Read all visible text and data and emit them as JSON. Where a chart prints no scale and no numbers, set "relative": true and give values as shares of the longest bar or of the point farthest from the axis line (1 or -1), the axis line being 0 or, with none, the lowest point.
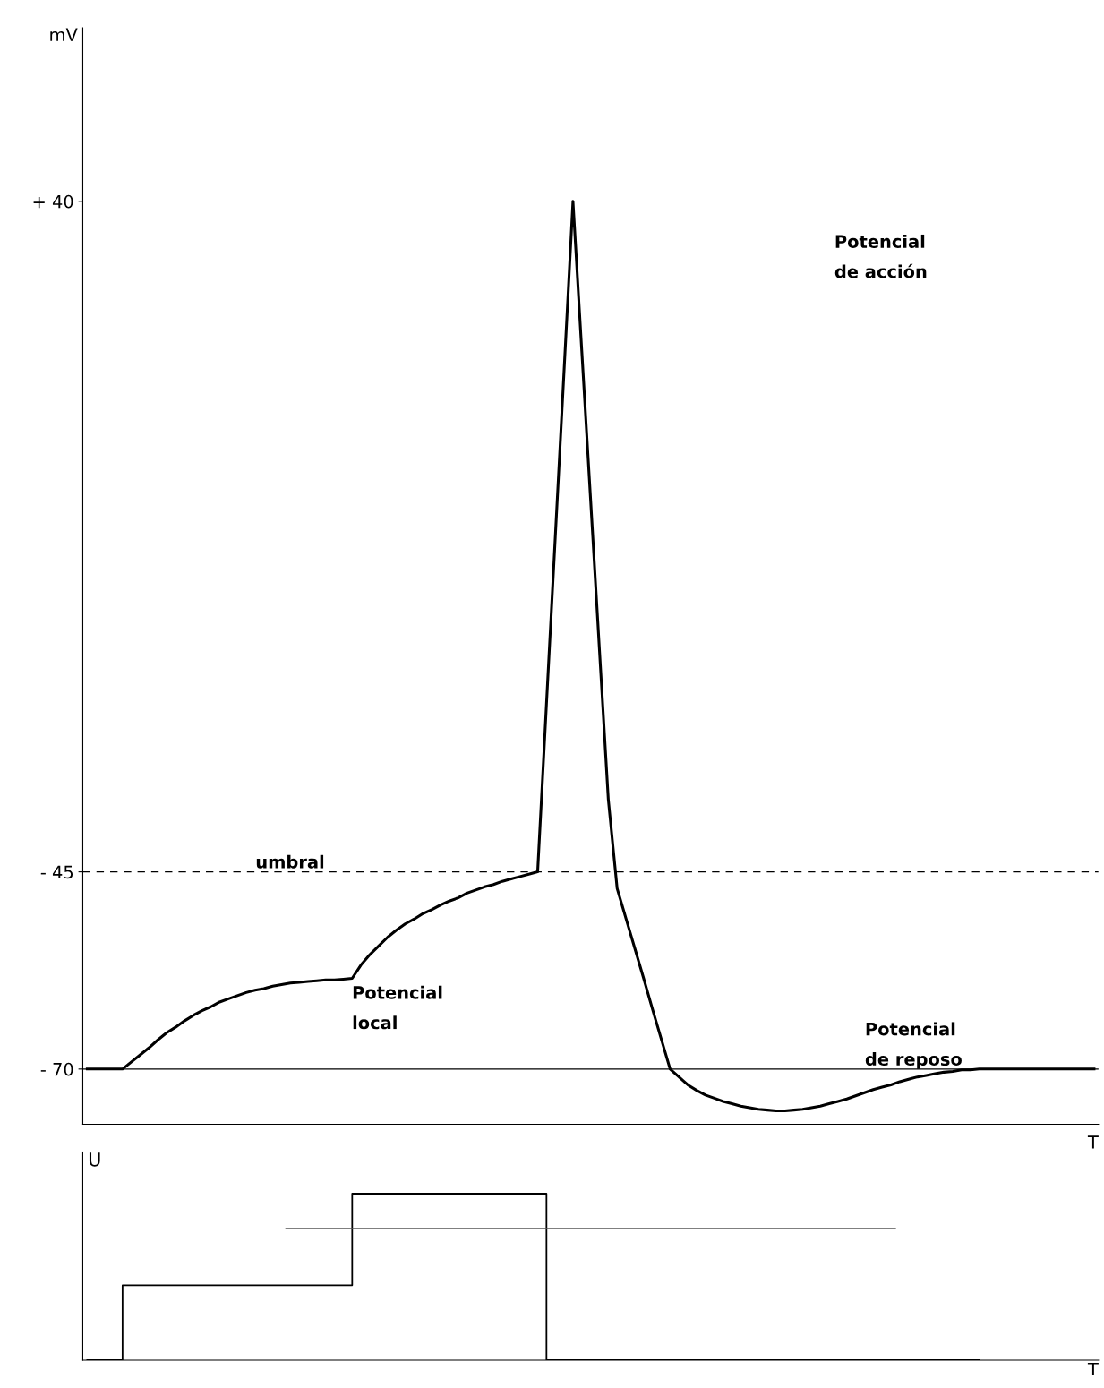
{
  "chart_data": [
    {
      "type": "line",
      "ylabel": "mV",
      "xlabel": "T",
      "categories": [
        null,
        null,
        null,
        null,
        null,
        null,
        null,
        null,
        null,
        null,
        null,
        null,
        null,
        null,
        null,
        null,
        null,
        null,
        null,
        null,
        null,
        null,
        null,
        null,
        null,
        null,
        null,
        null,
        null,
        null,
        null,
        null,
        null,
        null,
        null,
        null,
        null,
        null,
        null,
        null,
        null,
        null,
        null,
        null,
        null,
        null,
        null,
        null,
        null,
        null,
        null,
        null,
        null,
        null,
        null,
        null,
        null,
        null,
        null,
        null,
        null,
        null,
        null,
        null,
        null,
        null,
        null,
        null,
        null,
        null,
        null,
        null,
        null,
        null,
        null,
        null,
        null,
        null,
        null,
        null,
        null,
        null,
        null,
        null,
        null,
        null,
        null,
        null,
        null,
        null,
        null,
        null,
        null,
        null,
        null,
        null,
        null,
        null,
        null,
        null,
        null,
        null,
        null,
        null,
        null,
        null,
        null,
        null,
        null,
        null,
        null,
        null,
        null,
        null,
        null
      ],
      "series": [
        {
          "color": "#000000",
          "values": [
            -70,
            -70,
            -70,
            -70,
            -70,
            -69.1,
            -68.2,
            -67.3,
            -66.3,
            -65.4,
            -64.7,
            -63.9,
            -63.2,
            -62.6,
            -62.1,
            -61.5,
            -61.1,
            -60.7,
            -60.3,
            -60.0,
            -59.8,
            -59.5,
            -59.3,
            -59.1,
            -59.0,
            -58.9,
            -58.8,
            -58.7,
            -58.7,
            -58.6,
            -58.5,
            -56.8,
            -55.5,
            -54.4,
            -53.3,
            -52.4,
            -51.6,
            -51.0,
            -50.3,
            -49.8,
            -49.2,
            -48.7,
            -48.3,
            -47.7,
            -47.3,
            -46.9,
            -46.6,
            -46.2,
            -45.9,
            -45.6,
            -45.3,
            -45,
            -23.7,
            -2.5,
            18.7,
            40,
            21.0,
            2.1,
            -16.9,
            -35.8,
            -47.1,
            -50.9,
            -54.7,
            -58.5,
            -62.4,
            -66.2,
            -70,
            -71.0,
            -72.0,
            -72.7,
            -73.3,
            -73.7,
            -74.1,
            -74.4,
            -74.7,
            -74.9,
            -75.1,
            -75.2,
            -75.3,
            -75.3,
            -75.2,
            -75.1,
            -74.9,
            -74.7,
            -74.4,
            -74.1,
            -73.8,
            -73.4,
            -73.0,
            -72.6,
            -72.3,
            -72.0,
            -71.6,
            -71.3,
            -71.0,
            -70.8,
            -70.6,
            -70.4,
            -70.3,
            -70.1,
            -70.1,
            -70,
            -70,
            -70,
            -70,
            -70,
            -70,
            -70,
            -70,
            -70,
            -70,
            -70,
            -70,
            -70,
            -70
          ]
        }
      ],
      "ylim": [
        -77,
        62
      ],
      "yticks": [
        {
          "value": -70,
          "label": "- 70"
        },
        {
          "value": -45,
          "label": "- 45"
        },
        {
          "value": 40,
          "label": "+ 40"
        }
      ],
      "ref_lines": [
        {
          "axis": "y",
          "value": -45,
          "label": "umbral",
          "line_style": "dashed",
          "color": "#000000"
        },
        {
          "axis": "y",
          "value": -70,
          "label": "Potencial\nde reposo",
          "line_style": "solid",
          "color": "#000000"
        }
      ],
      "annotations": [
        "Potencial\nde acción",
        "Potencial\nlocal"
      ],
      "grid": false,
      "legend": false,
      "tick_labels": "y"
    },
    {
      "type": "step",
      "ylabel": "U",
      "xlabel": "T",
      "relative": true,
      "categories": [
        null,
        null,
        null,
        null,
        null,
        null,
        null,
        null,
        null,
        null,
        null,
        null,
        null,
        null,
        null,
        null,
        null,
        null,
        null,
        null,
        null,
        null,
        null,
        null,
        null,
        null,
        null,
        null,
        null,
        null,
        null,
        null,
        null,
        null,
        null,
        null,
        null,
        null,
        null,
        null,
        null,
        null,
        null,
        null,
        null,
        null,
        null,
        null,
        null,
        null,
        null,
        null,
        null,
        null,
        null,
        null,
        null,
        null,
        null,
        null,
        null,
        null,
        null,
        null,
        null,
        null,
        null,
        null,
        null,
        null,
        null,
        null,
        null,
        null,
        null,
        null,
        null,
        null,
        null,
        null,
        null,
        null,
        null,
        null,
        null,
        null,
        null,
        null,
        null,
        null,
        null,
        null,
        null,
        null,
        null,
        null,
        null,
        null,
        null,
        null,
        null,
        null
      ],
      "series": [
        {
          "color": "#000000",
          "values": [
            0,
            0,
            0,
            0,
            0.45,
            0.45,
            0.45,
            0.45,
            0.45,
            0.45,
            0.45,
            0.45,
            0.45,
            0.45,
            0.45,
            0.45,
            0.45,
            0.45,
            0.45,
            0.45,
            0.45,
            0.45,
            0.45,
            0.45,
            0.45,
            0.45,
            0.45,
            0.45,
            0.45,
            0.45,
            1,
            1,
            1,
            1,
            1,
            1,
            1,
            1,
            1,
            1,
            1,
            1,
            1,
            1,
            1,
            1,
            1,
            1,
            1,
            1,
            1,
            1,
            0,
            0,
            0,
            0,
            0,
            0,
            0,
            0,
            0,
            0,
            0,
            0,
            0,
            0,
            0,
            0,
            0,
            0,
            0,
            0,
            0,
            0,
            0,
            0,
            0,
            0,
            0,
            0,
            0,
            0,
            0,
            0,
            0,
            0,
            0,
            0,
            0,
            0,
            0,
            0,
            0,
            0,
            0,
            0,
            0,
            0,
            0,
            0,
            0,
            0
          ]
        }
      ],
      "ref_lines": [
        {
          "axis": "y",
          "value": 0.79,
          "line_style": "solid",
          "color": "#555555"
        }
      ],
      "grid": false,
      "legend": false,
      "tick_labels": false
    }
  ]
}
